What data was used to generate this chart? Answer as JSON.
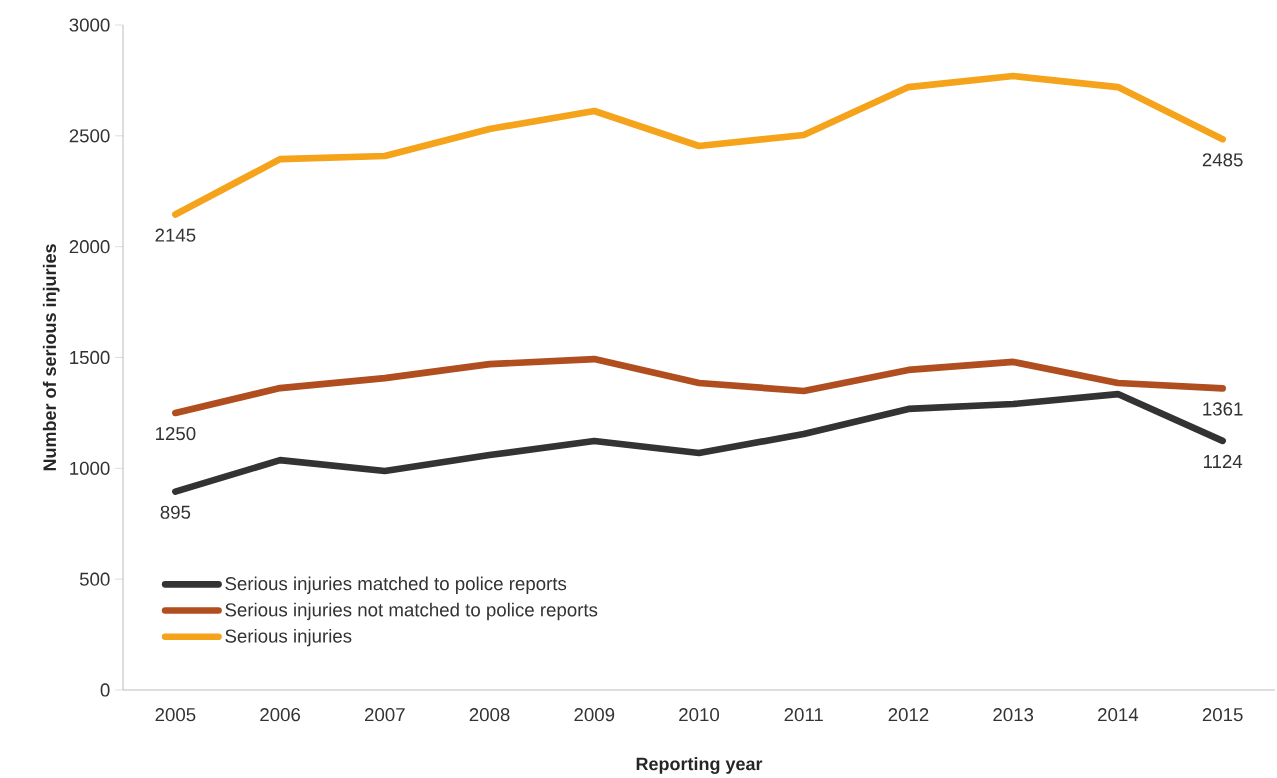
{
  "chart_data": {
    "type": "line",
    "xlabel": "Reporting year",
    "ylabel": "Number of serious injuries",
    "categories": [
      "2005",
      "2006",
      "2007",
      "2008",
      "2009",
      "2010",
      "2011",
      "2012",
      "2013",
      "2014",
      "2015"
    ],
    "series": [
      {
        "name": "Serious injuries matched to police reports",
        "color": "#333333",
        "values": [
          895,
          1037,
          988,
          1060,
          1123,
          1069,
          1155,
          1268,
          1290,
          1335,
          1124
        ],
        "value_labels": [
          "895",
          null,
          null,
          null,
          null,
          null,
          null,
          null,
          null,
          null,
          "1124"
        ]
      },
      {
        "name": "Serious injuries not matched to police reports",
        "color": "#b04e1f",
        "values": [
          1250,
          1362,
          1407,
          1470,
          1493,
          1385,
          1349,
          1444,
          1480,
          1385,
          1361
        ],
        "value_labels": [
          "1250",
          null,
          null,
          null,
          null,
          null,
          null,
          null,
          null,
          null,
          "1361"
        ]
      },
      {
        "name": "Serious injuries",
        "color": "#f5a31a",
        "values": [
          2145,
          2395,
          2409,
          2531,
          2612,
          2454,
          2504,
          2720,
          2770,
          2720,
          2485
        ],
        "value_labels": [
          "2145",
          null,
          null,
          null,
          null,
          null,
          null,
          null,
          null,
          null,
          "2485"
        ]
      }
    ],
    "ylim": [
      0,
      3000
    ],
    "yticks": [
      0,
      500,
      1000,
      1500,
      2000,
      2500,
      3000
    ],
    "grid": false,
    "legend": "bottom left",
    "marker": "none",
    "line_style": "solid"
  }
}
